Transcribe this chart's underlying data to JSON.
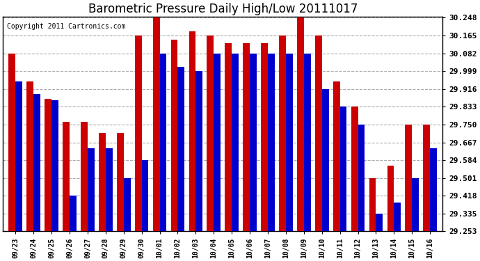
{
  "title": "Barometric Pressure Daily High/Low 20111017",
  "copyright": "Copyright 2011 Cartronics.com",
  "dates": [
    "09/23",
    "09/24",
    "09/25",
    "09/26",
    "09/27",
    "09/28",
    "09/29",
    "09/30",
    "10/01",
    "10/02",
    "10/03",
    "10/04",
    "10/05",
    "10/06",
    "10/07",
    "10/08",
    "10/09",
    "10/10",
    "10/11",
    "10/12",
    "10/13",
    "10/14",
    "10/15",
    "10/16"
  ],
  "highs": [
    30.082,
    29.95,
    29.87,
    29.762,
    29.762,
    29.71,
    29.71,
    30.165,
    30.248,
    30.145,
    30.185,
    30.165,
    30.13,
    30.13,
    30.13,
    30.165,
    30.248,
    30.165,
    29.95,
    29.833,
    29.501,
    29.56,
    29.75,
    29.75
  ],
  "lows": [
    29.95,
    29.892,
    29.862,
    29.418,
    29.64,
    29.64,
    29.501,
    29.584,
    30.082,
    30.02,
    29.999,
    30.082,
    30.082,
    30.082,
    30.082,
    30.082,
    30.082,
    29.916,
    29.833,
    29.75,
    29.335,
    29.388,
    29.501,
    29.64
  ],
  "high_color": "#cc0000",
  "low_color": "#0000cc",
  "ylim_min": 29.253,
  "ylim_max": 30.248,
  "yticks": [
    29.253,
    29.335,
    29.418,
    29.501,
    29.584,
    29.667,
    29.75,
    29.833,
    29.916,
    29.999,
    30.082,
    30.165,
    30.248
  ],
  "bg_color": "#ffffff",
  "plot_bg": "#ffffff",
  "grid_color": "#aaaaaa",
  "title_fontsize": 12,
  "tick_fontsize": 8,
  "bar_width": 0.38
}
